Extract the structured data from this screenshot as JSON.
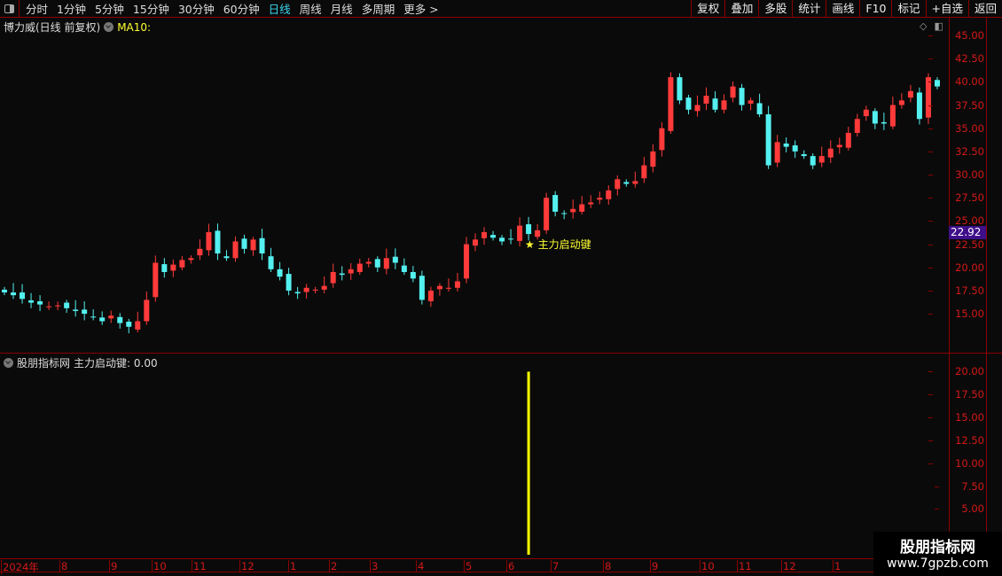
{
  "toolbar": {
    "periods": [
      "分时",
      "1分钟",
      "5分钟",
      "15分钟",
      "30分钟",
      "60分钟",
      "日线",
      "周线",
      "月线",
      "多周期",
      "更多 >"
    ],
    "active_period": "日线",
    "tools": [
      "复权",
      "叠加",
      "多股",
      "统计",
      "画线",
      "F10",
      "标记",
      "+自选",
      "返回"
    ]
  },
  "main": {
    "title": "博力威(日线 前复权)",
    "ma_label": "MA10:",
    "current_price": "22.92",
    "annotation": "★ 主力启动键"
  },
  "indicator": {
    "title": "股朋指标网",
    "series_label": "主力启动键: 0.00"
  },
  "watermark": {
    "line1": "股朋指标网",
    "line2": "www.7gpzb.com"
  },
  "colors": {
    "up": "#ff3a3a",
    "down": "#54f0f0",
    "signal": "#ffff00",
    "axis": "#d41818",
    "border": "#8b0000"
  },
  "chart_data": [
    {
      "type": "candlestick",
      "ylim": [
        12.5,
        46
      ],
      "yticks": [
        "45.00",
        "42.50",
        "40.00",
        "37.50",
        "35.00",
        "32.50",
        "30.00",
        "27.50",
        "25.00",
        "22.50",
        "20.00",
        "17.50",
        "15.00"
      ],
      "xticks": [
        "2024年",
        "8",
        "9",
        "10",
        "11",
        "12",
        "1",
        "2",
        "3",
        "4",
        "5",
        "6",
        "7",
        "8",
        "9",
        "10",
        "11",
        "12",
        "1"
      ],
      "close": [
        17.3,
        17.0,
        16.6,
        16.2,
        16.0,
        15.8,
        15.9,
        15.6,
        15.3,
        15.0,
        14.6,
        14.2,
        14.8,
        14.0,
        13.6,
        14.2,
        16.5,
        20.5,
        19.5,
        20.3,
        20.8,
        21.0,
        22.0,
        23.8,
        21.5,
        21.0,
        22.8,
        22.0,
        23.0,
        21.5,
        19.8,
        19.0,
        17.5,
        17.2,
        17.8,
        17.6,
        18.0,
        19.5,
        19.2,
        19.8,
        20.4,
        20.6,
        20.0,
        21.0,
        20.5,
        19.5,
        18.8,
        16.5,
        17.5,
        18.0,
        17.8,
        18.5,
        22.5,
        23.0,
        23.8,
        23.2,
        22.8,
        23.0,
        24.5,
        23.6,
        24.0,
        27.5,
        26.0,
        25.8,
        26.3,
        26.8,
        27.0,
        27.5,
        28.3,
        29.5,
        29.0,
        29.3,
        31.0,
        32.5,
        35.0,
        40.5,
        38.0,
        37.0,
        37.5,
        38.5,
        37.0,
        38.0,
        39.5,
        37.5,
        38.0,
        36.5,
        31.0,
        33.5,
        33.0,
        32.5,
        32.0,
        31.0,
        32.0,
        32.8,
        33.2,
        34.5,
        36.0,
        37.0,
        35.5,
        35.5,
        37.5,
        38.0,
        39.0,
        36.0,
        40.5,
        39.5
      ]
    },
    {
      "type": "bar",
      "ylim": [
        0,
        21
      ],
      "yticks": [
        "20.00",
        "17.50",
        "15.00",
        "12.50",
        "10.00",
        "7.50",
        "5.00"
      ],
      "signal_value": 20,
      "signal_index": 59
    }
  ]
}
